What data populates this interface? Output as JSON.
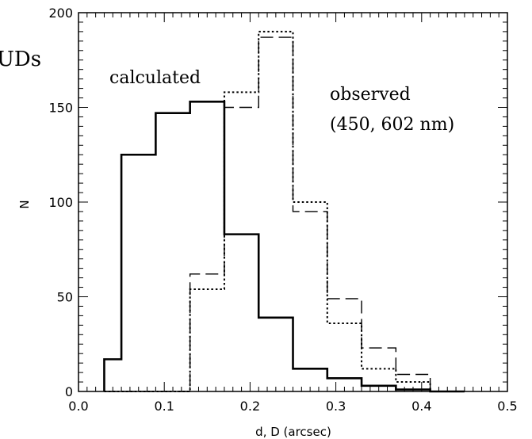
{
  "chart_data": {
    "type": "bar",
    "xlabel": "d, D (arcsec)",
    "ylabel": "N",
    "xlim": [
      0.0,
      0.5
    ],
    "ylim": [
      0,
      200
    ],
    "xticks": [
      "0.0",
      "0.1",
      "0.2",
      "0.3",
      "0.4",
      "0.5"
    ],
    "yticks": [
      "0",
      "50",
      "100",
      "150",
      "200"
    ],
    "bin_edges": [
      0.03,
      0.05,
      0.09,
      0.13,
      0.17,
      0.21,
      0.25,
      0.29,
      0.33,
      0.37,
      0.41,
      0.45
    ],
    "series": [
      {
        "name": "calculated",
        "style": "solid",
        "values": [
          17,
          125,
          147,
          153,
          83,
          39,
          12,
          7,
          3,
          1,
          0
        ]
      },
      {
        "name": "observed 450 nm",
        "style": "dotted",
        "values": [
          0,
          0,
          0,
          54,
          158,
          190,
          100,
          36,
          12,
          5,
          0
        ]
      },
      {
        "name": "observed 602 nm",
        "style": "dashed",
        "values": [
          0,
          0,
          0,
          62,
          150,
          187,
          95,
          49,
          23,
          9,
          0
        ]
      }
    ],
    "annotations": {
      "calculated": "calculated",
      "observed_line1": "observed",
      "observed_line2": "(450, 602 nm)",
      "cropped_title_fragment": "UDs"
    },
    "grid": false,
    "legend": "none"
  }
}
